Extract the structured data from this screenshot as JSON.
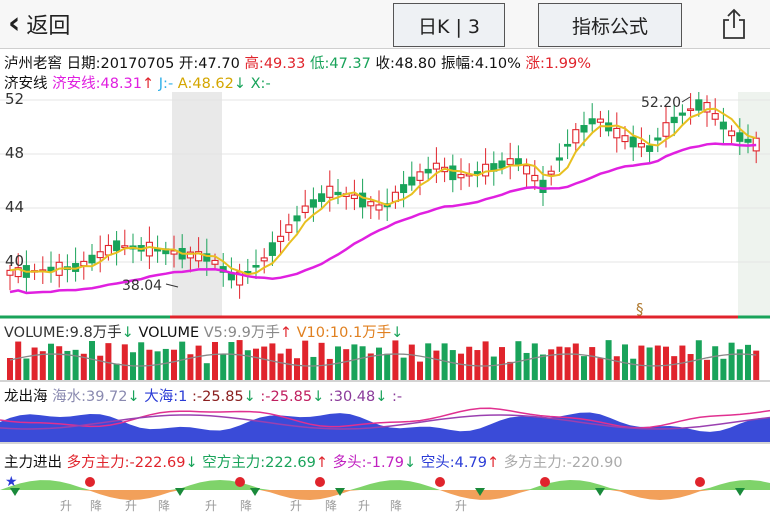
{
  "nav": {
    "back": "返回",
    "kline": "日K | 3",
    "formula": "指标公式"
  },
  "header": {
    "name": "泸州老窖",
    "date": "日期:20170705",
    "open": "开:47.70",
    "high": "高:49.33",
    "low": "低:47.37",
    "close": "收:48.80",
    "amplitude": "振幅:4.10%",
    "change": "涨:1.99%"
  },
  "indicator": {
    "name": "济安线",
    "line": "济安线:48.31",
    "j": "J:-",
    "a": "A:48.62",
    "x": "X:-"
  },
  "price_axis": [
    "52",
    "48",
    "44",
    "40"
  ],
  "annotations": {
    "high": "52.20",
    "low": "38.04",
    "marker": "§"
  },
  "volume": {
    "label": "VOLUME:9.8万手",
    "name": "VOLUME",
    "v5": "V5:9.9万手",
    "v10": "V10:10.1万手"
  },
  "longchuhai": {
    "name": "龙出海",
    "haishui": "海水:39.72",
    "dahai": "大海:1",
    "v1": ":-25.85",
    "v2": ":-25.85",
    "v3": ":30.48",
    "v4": ":-"
  },
  "zhuli": {
    "name": "主力进出",
    "duofang": "多方主力:-222.69",
    "kongfang": "空方主力:222.69",
    "duotou": "多头:-1.79",
    "kongtou": "空头:4.79",
    "more": "多方主力:-220.90"
  },
  "bottom_labels": [
    "升",
    "降",
    "升",
    "降",
    "升",
    "降",
    "升",
    "降",
    "升",
    "降",
    "升"
  ],
  "colors": {
    "up": "#e0242c",
    "down": "#19a35a",
    "magenta": "#e020e0",
    "yellow": "#e8c020",
    "blue": "#2b3cd6"
  }
}
